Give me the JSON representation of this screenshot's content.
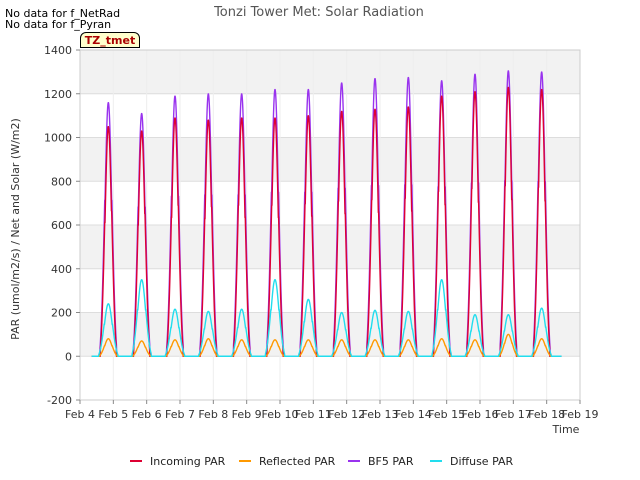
{
  "notes": [
    "No data for f_NetRad",
    "No data for f_Pyran"
  ],
  "tag": "TZ_tmet",
  "chart_data": {
    "type": "line",
    "title": "Tonzi Tower Met: Solar Radiation",
    "xlabel": "Time",
    "ylabel": "PAR (umol/m2/s) / Net and Solar (W/m2)",
    "xlim": [
      4,
      19
    ],
    "ylim": [
      -200,
      1400
    ],
    "x_ticks": [
      4,
      5,
      6,
      7,
      8,
      9,
      10,
      11,
      12,
      13,
      14,
      15,
      16,
      17,
      18,
      19
    ],
    "x_tick_labels": [
      "Feb 4",
      "Feb 5",
      "Feb 6",
      "Feb 7",
      "Feb 8",
      "Feb 9",
      "Feb 10",
      "Feb 11",
      "Feb 12",
      "Feb 13",
      "Feb 14",
      "Feb 15",
      "Feb 16",
      "Feb 17",
      "Feb 18",
      "Feb 19"
    ],
    "y_ticks": [
      -200,
      0,
      200,
      400,
      600,
      800,
      1000,
      1200,
      1400
    ],
    "y_tick_labels": [
      "-200",
      "0",
      "200",
      "400",
      "600",
      "800",
      "1000",
      "1200",
      "1400"
    ],
    "grid": true,
    "legend_position": "bottom",
    "data_x_range": [
      4.35,
      18.45
    ],
    "day_centers": [
      4.85,
      5.85,
      6.85,
      7.85,
      8.85,
      9.85,
      10.85,
      11.85,
      12.85,
      13.85,
      14.85,
      15.85,
      16.85,
      17.85
    ],
    "series": [
      {
        "name": "Incoming PAR",
        "color": "#dd0033",
        "daily_peaks": [
          1050,
          1030,
          1090,
          1080,
          1090,
          1090,
          1100,
          1120,
          1130,
          1140,
          1190,
          1210,
          1230,
          1220
        ]
      },
      {
        "name": "Reflected PAR",
        "color": "#ff9900",
        "daily_peaks": [
          80,
          70,
          75,
          80,
          75,
          75,
          75,
          75,
          75,
          75,
          80,
          75,
          100,
          80
        ]
      },
      {
        "name": "BF5 PAR",
        "color": "#9933ee",
        "daily_peaks": [
          1160,
          1110,
          1190,
          1200,
          1200,
          1220,
          1220,
          1250,
          1270,
          1275,
          1260,
          1290,
          1305,
          1300
        ]
      },
      {
        "name": "Diffuse PAR",
        "color": "#22ddee",
        "daily_peaks": [
          240,
          350,
          215,
          205,
          215,
          350,
          260,
          200,
          210,
          205,
          350,
          190,
          190,
          220
        ]
      }
    ]
  }
}
